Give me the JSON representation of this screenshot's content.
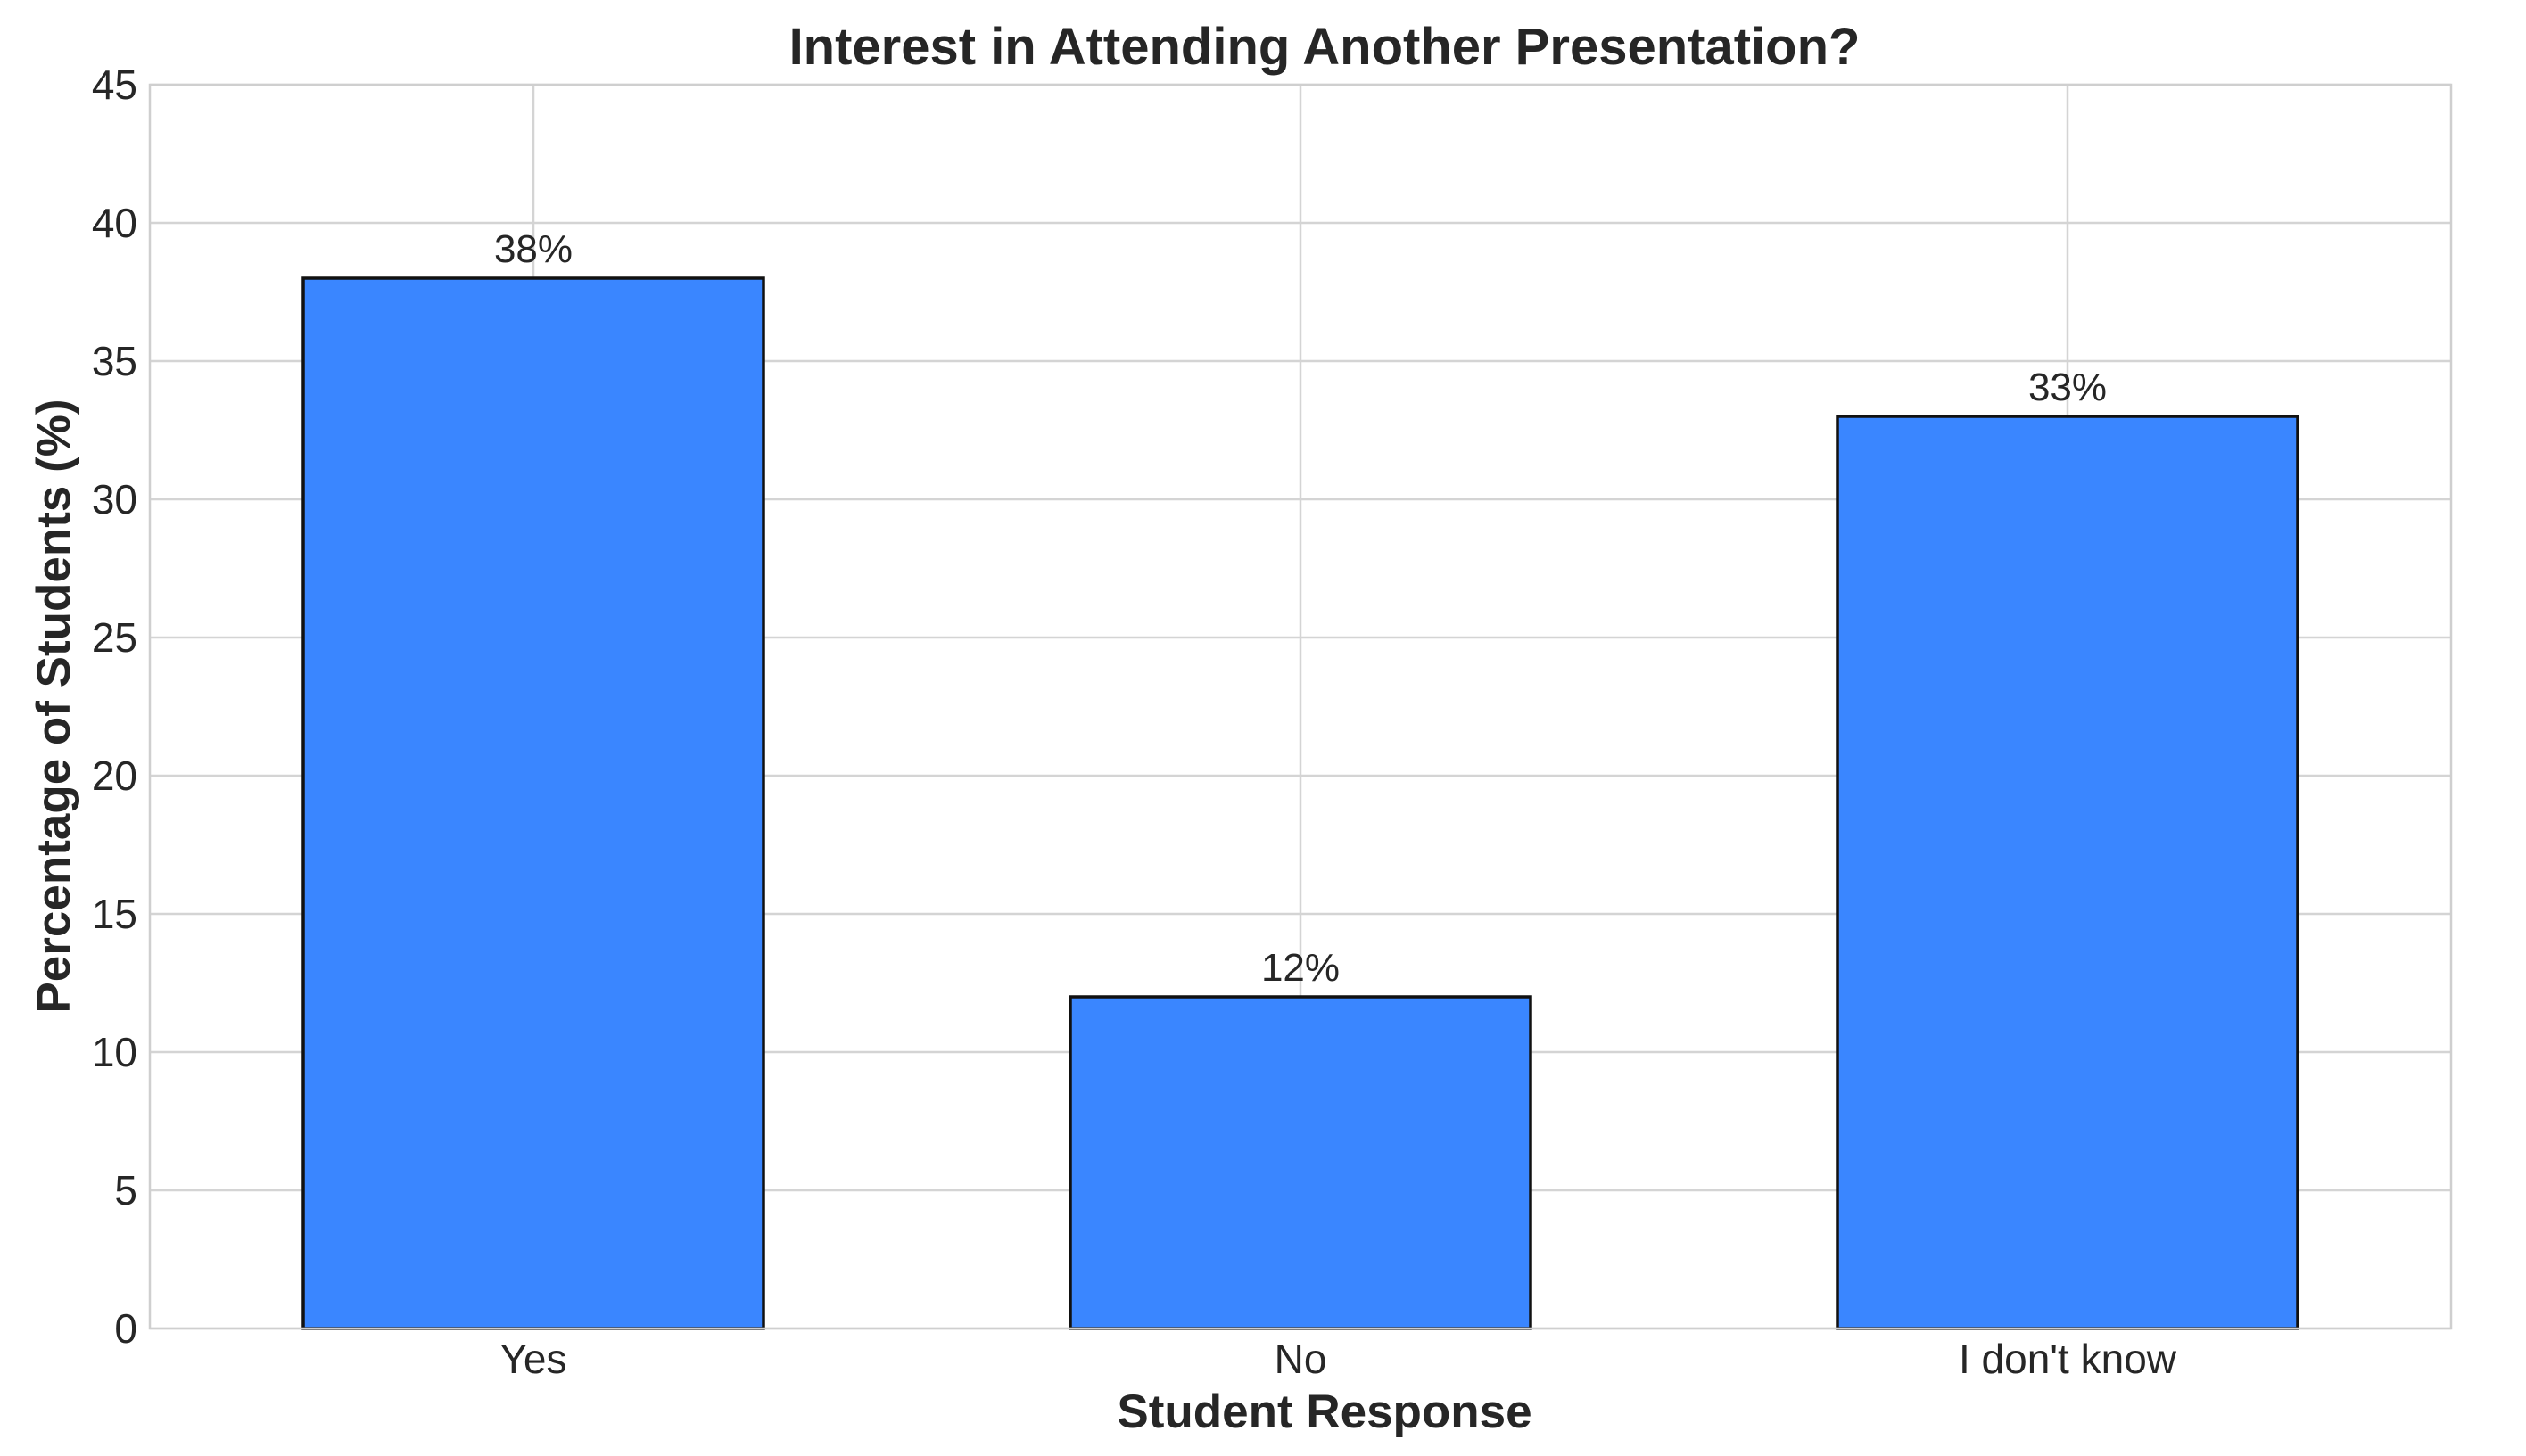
{
  "chart_data": {
    "type": "bar",
    "title": "Interest in Attending Another Presentation?",
    "xlabel": "Student Response",
    "ylabel": "Percentage of Students (%)",
    "categories": [
      "Yes",
      "No",
      "I don't know"
    ],
    "values": [
      38,
      12,
      33
    ],
    "value_labels": [
      "38%",
      "12%",
      "33%"
    ],
    "ylim": [
      0,
      45
    ],
    "yticks": [
      0,
      5,
      10,
      15,
      20,
      25,
      30,
      35,
      40,
      45
    ],
    "grid": true,
    "bar_color": "#3a86ff",
    "edge_color": "#111111"
  }
}
